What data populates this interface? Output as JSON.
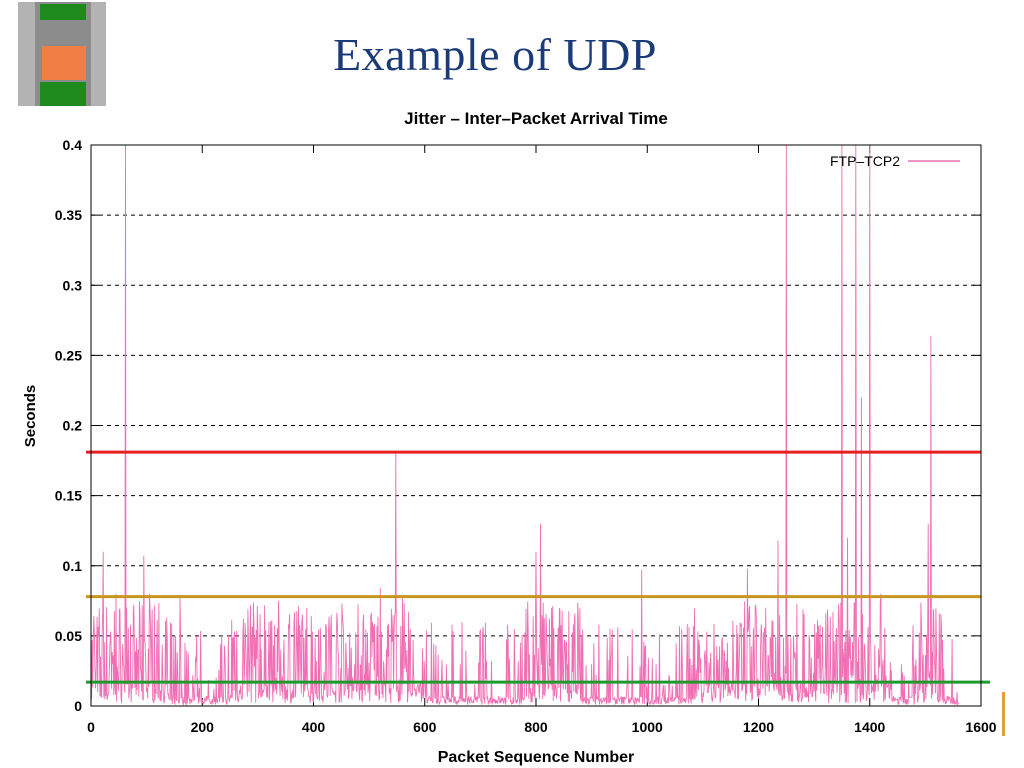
{
  "slide": {
    "title": "Example of UDP"
  },
  "colors": {
    "title": "#1a3a78",
    "series": "#f06eb4",
    "red_line": "#e82020",
    "orange_line": "#c8961e",
    "green_line": "#1e9a2a"
  },
  "chart_data": {
    "type": "line",
    "title": "Jitter – Inter–Packet Arrival Time",
    "xlabel": "Packet Sequence Number",
    "ylabel": "Seconds",
    "xlim": [
      0,
      1600
    ],
    "ylim": [
      0,
      0.4
    ],
    "xticks": [
      "0",
      "200",
      "400",
      "600",
      "800",
      "1000",
      "1200",
      "1400",
      "1600"
    ],
    "yticks": [
      "0",
      "0.05",
      "0.1",
      "0.15",
      "0.2",
      "0.25",
      "0.3",
      "0.35",
      "0.4"
    ],
    "grid": "horizontal-dashed",
    "legend_position": "top-right",
    "series": [
      {
        "name": "FTP–TCP2",
        "x_range": [
          0,
          1560
        ],
        "peaks": [
          {
            "x": 5,
            "y": 0.064
          },
          {
            "x": 22,
            "y": 0.11
          },
          {
            "x": 45,
            "y": 0.08
          },
          {
            "x": 62,
            "y": 0.4
          },
          {
            "x": 95,
            "y": 0.107
          },
          {
            "x": 105,
            "y": 0.08
          },
          {
            "x": 160,
            "y": 0.077
          },
          {
            "x": 320,
            "y": 0.06
          },
          {
            "x": 380,
            "y": 0.065
          },
          {
            "x": 520,
            "y": 0.084
          },
          {
            "x": 548,
            "y": 0.182
          },
          {
            "x": 560,
            "y": 0.077
          },
          {
            "x": 800,
            "y": 0.11
          },
          {
            "x": 808,
            "y": 0.13
          },
          {
            "x": 990,
            "y": 0.097
          },
          {
            "x": 1180,
            "y": 0.098
          },
          {
            "x": 1235,
            "y": 0.118
          },
          {
            "x": 1250,
            "y": 0.4
          },
          {
            "x": 1350,
            "y": 0.4
          },
          {
            "x": 1360,
            "y": 0.12
          },
          {
            "x": 1375,
            "y": 0.4
          },
          {
            "x": 1385,
            "y": 0.22
          },
          {
            "x": 1400,
            "y": 0.4
          },
          {
            "x": 1420,
            "y": 0.08
          },
          {
            "x": 1505,
            "y": 0.13
          },
          {
            "x": 1510,
            "y": 0.264
          }
        ]
      }
    ],
    "reference_lines": [
      {
        "y": 0.181,
        "color": "#e82020"
      },
      {
        "y": 0.078,
        "color": "#c8961e"
      },
      {
        "y": 0.017,
        "color": "#1e9a2a"
      }
    ]
  }
}
